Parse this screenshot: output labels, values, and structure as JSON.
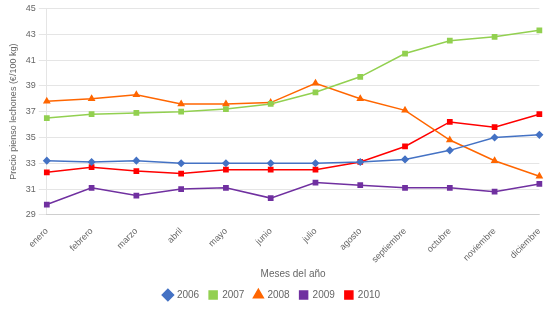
{
  "chart_data": {
    "type": "line",
    "xlabel": "Meses del año",
    "ylabel": "Precio pienso lechones (€/100 kg)",
    "categories": [
      "enero",
      "febrero",
      "marzo",
      "abril",
      "mayo",
      "junio",
      "julio",
      "agosto",
      "septiembre",
      "octubre",
      "noviembre",
      "diciembre"
    ],
    "series": [
      {
        "name": "2006",
        "color": "#4472C4",
        "marker": "diamond",
        "values": [
          33.2,
          33.1,
          33.2,
          33.0,
          33.0,
          33.0,
          33.0,
          33.1,
          33.3,
          34.0,
          35.0,
          35.2
        ]
      },
      {
        "name": "2007",
        "color": "#92D050",
        "marker": "square",
        "values": [
          36.5,
          36.8,
          36.9,
          37.0,
          37.2,
          37.6,
          38.5,
          39.7,
          41.5,
          42.5,
          42.8,
          43.3
        ]
      },
      {
        "name": "2008",
        "color": "#FF6600",
        "marker": "triangle",
        "values": [
          37.8,
          38.0,
          38.3,
          37.6,
          37.6,
          37.7,
          39.2,
          38.0,
          37.1,
          34.8,
          33.2,
          32.0
        ]
      },
      {
        "name": "2009",
        "color": "#7030A0",
        "marker": "square",
        "values": [
          29.8,
          31.1,
          30.5,
          31.0,
          31.1,
          30.3,
          31.5,
          31.3,
          31.1,
          31.1,
          30.8,
          31.4
        ]
      },
      {
        "name": "2010",
        "color": "#FF0000",
        "marker": "square",
        "values": [
          32.3,
          32.7,
          32.4,
          32.2,
          32.5,
          32.5,
          32.5,
          33.1,
          34.3,
          36.2,
          35.8,
          36.8
        ]
      }
    ],
    "ylim": [
      29,
      45
    ],
    "yticks": [
      29,
      31,
      33,
      35,
      37,
      39,
      41,
      43,
      45
    ],
    "grid": "y",
    "legend": "bottom"
  }
}
